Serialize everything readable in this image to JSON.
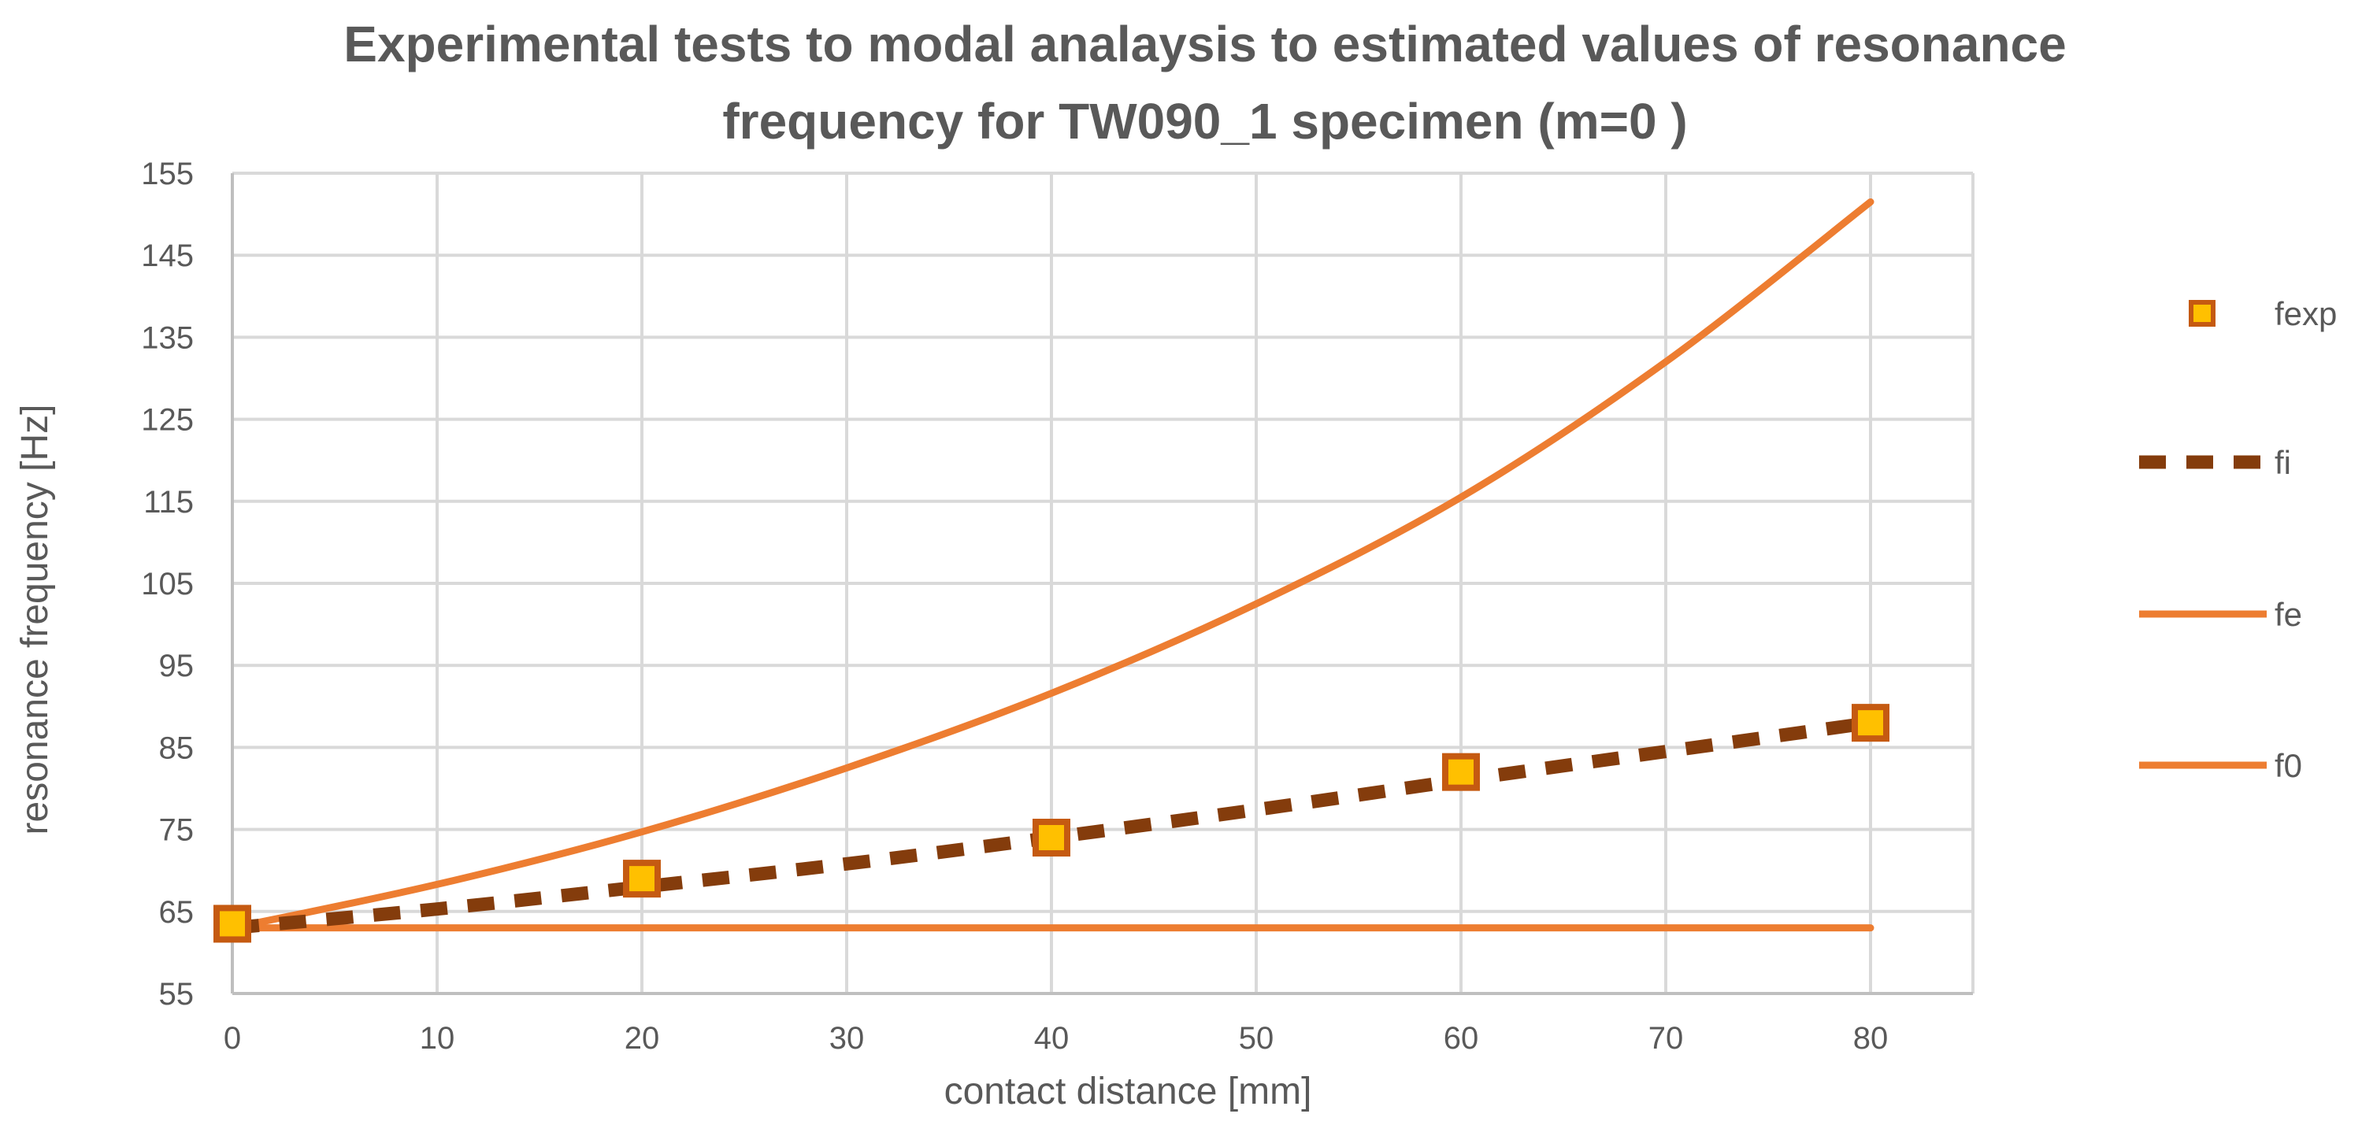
{
  "chart_data": {
    "type": "line",
    "title": [
      "Experimental tests to modal analaysis to estimated values of resonance",
      "frequency for TW090_1 specimen (m=0 )"
    ],
    "xlabel": "contact distance [mm]",
    "ylabel": "resonance frequency [Hz]",
    "xlim": [
      0,
      85
    ],
    "ylim": [
      55,
      155
    ],
    "xticks": [
      0,
      10,
      20,
      30,
      40,
      50,
      60,
      70,
      80
    ],
    "yticks": [
      55,
      65,
      75,
      85,
      95,
      105,
      115,
      125,
      135,
      145,
      155
    ],
    "grid": true,
    "legend_position": "right",
    "series": [
      {
        "name": "fexp",
        "style": "markers",
        "color": "#C55A11",
        "fill": "#FFC000",
        "x": [
          0,
          20,
          40,
          60,
          80
        ],
        "y": [
          63.5,
          69,
          74,
          82,
          88
        ]
      },
      {
        "name": "fi",
        "style": "dashed",
        "color": "#843C0C",
        "x": [
          0,
          10,
          20,
          30,
          40,
          50,
          60,
          70,
          80
        ],
        "y": [
          63,
          65.3,
          68,
          70.8,
          74,
          77.4,
          81,
          84.5,
          88
        ]
      },
      {
        "name": "fe",
        "style": "solid",
        "color": "#ED7D31",
        "x": [
          0,
          10,
          20,
          30,
          40,
          50,
          60,
          70,
          80
        ],
        "y": [
          63,
          68.3,
          74.7,
          82.5,
          91.6,
          102.5,
          115.5,
          132,
          151.5
        ]
      },
      {
        "name": "f0",
        "style": "solid",
        "color": "#ED7D31",
        "x": [
          0,
          80
        ],
        "y": [
          63,
          63
        ]
      }
    ]
  }
}
